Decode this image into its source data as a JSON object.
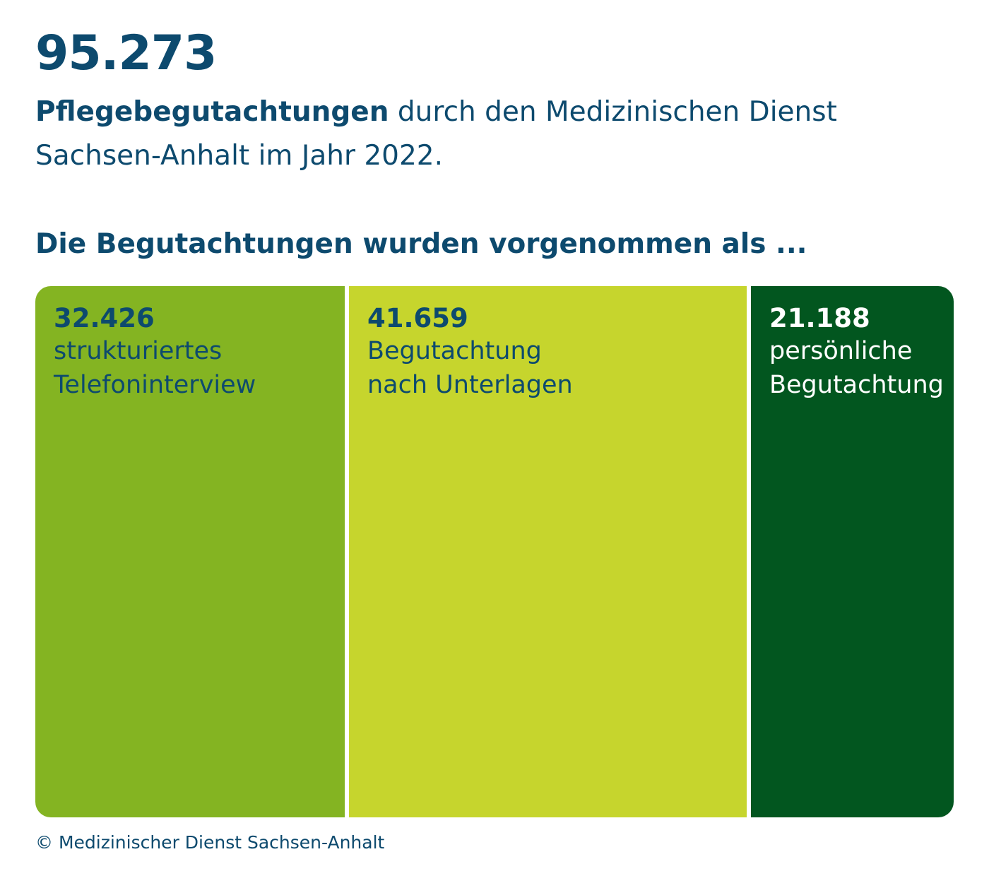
{
  "header": {
    "total": "95.273",
    "subtitle_bold": "Pflegebegutachtungen",
    "subtitle_rest": " durch den Medizinischen Dienst Sachsen-Anhalt im Jahr 2022.",
    "lead": "Die Begutachtungen wurden vorgenommen als ..."
  },
  "chart_data": {
    "type": "treemap",
    "title": "Die Begutachtungen wurden vorgenommen als ...",
    "total": 95273,
    "categories": [
      "strukturiertes Telefoninterview",
      "Begutachtung nach Unterlagen",
      "persönliche Begutachtung"
    ],
    "values": [
      32426,
      41659,
      21188
    ],
    "segments": [
      {
        "value_label": "32.426",
        "label": "strukturiertes\nTelefoninterview",
        "value": 32426,
        "color": "#84b422",
        "text_color": "#0d4a6e"
      },
      {
        "value_label": "41.659",
        "label": "Begutachtung\nnach Unterlagen",
        "value": 41659,
        "color": "#c6d52d",
        "text_color": "#0d4a6e"
      },
      {
        "value_label": "21.188",
        "label": "persönliche\nBegutachtung",
        "value": 21188,
        "color": "#02561f",
        "text_color": "#ffffff"
      }
    ]
  },
  "footer": {
    "copyright": "© Medizinischer Dienst Sachsen-Anhalt"
  }
}
